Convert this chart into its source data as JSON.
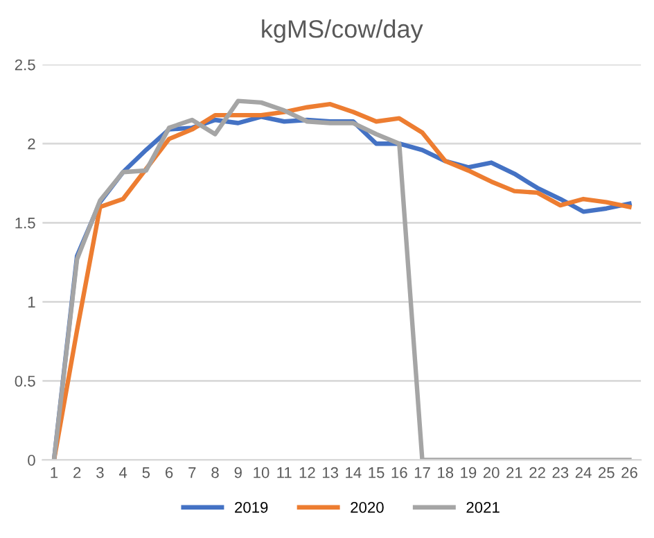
{
  "chart_data": {
    "type": "line",
    "title": "kgMS/cow/day",
    "categories": [
      "1",
      "2",
      "3",
      "4",
      "5",
      "6",
      "7",
      "8",
      "9",
      "10",
      "11",
      "12",
      "13",
      "14",
      "15",
      "16",
      "17",
      "18",
      "19",
      "20",
      "21",
      "22",
      "23",
      "24",
      "25",
      "26"
    ],
    "series": [
      {
        "name": "2019",
        "color": "#4472c4",
        "values": [
          0,
          1.29,
          1.63,
          1.82,
          1.96,
          2.09,
          2.1,
          2.15,
          2.13,
          2.17,
          2.14,
          2.15,
          2.14,
          2.14,
          2.0,
          2.0,
          1.96,
          1.89,
          1.85,
          1.88,
          1.81,
          1.72,
          1.65,
          1.57,
          1.59,
          1.62
        ]
      },
      {
        "name": "2020",
        "color": "#ed7d31",
        "values": [
          0,
          0.82,
          1.6,
          1.65,
          1.84,
          2.03,
          2.09,
          2.18,
          2.18,
          2.18,
          2.2,
          2.23,
          2.25,
          2.2,
          2.14,
          2.16,
          2.07,
          1.89,
          1.83,
          1.76,
          1.7,
          1.69,
          1.61,
          1.65,
          1.63,
          1.6
        ]
      },
      {
        "name": "2021",
        "color": "#a5a5a5",
        "values": [
          0,
          1.27,
          1.64,
          1.82,
          1.83,
          2.1,
          2.15,
          2.06,
          2.27,
          2.26,
          2.21,
          2.14,
          2.13,
          2.13,
          2.06,
          2.0,
          0,
          0,
          0,
          0,
          0,
          0,
          0,
          0,
          0,
          0
        ]
      }
    ],
    "ylim": [
      0,
      2.5
    ],
    "yticks": [
      {
        "value": 0,
        "label": "0"
      },
      {
        "value": 0.5,
        "label": "0.5"
      },
      {
        "value": 1,
        "label": "1"
      },
      {
        "value": 1.5,
        "label": "1.5"
      },
      {
        "value": 2,
        "label": "2"
      },
      {
        "value": 2.5,
        "label": "2.5"
      }
    ],
    "grid": "y",
    "legend": "bottom",
    "marker": "none",
    "line_style": "solid"
  }
}
